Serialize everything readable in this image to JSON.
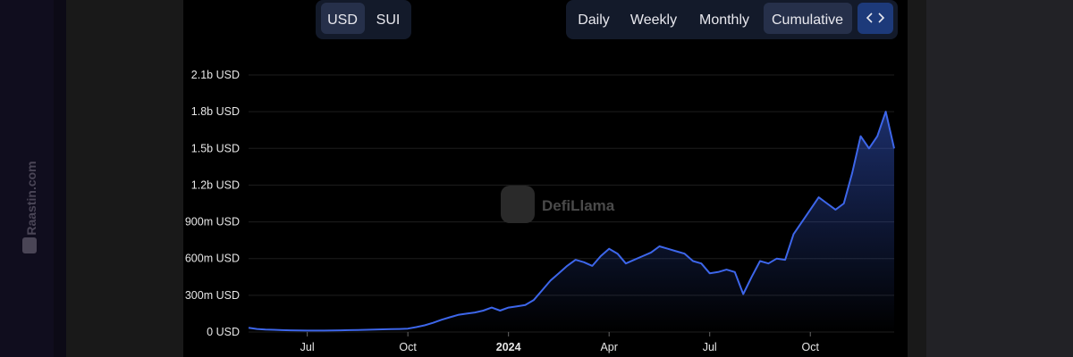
{
  "ui": {
    "currency_buttons": [
      "USD",
      "SUI"
    ],
    "period_buttons": [
      "Daily",
      "Weekly",
      "Monthly",
      "Cumulative"
    ],
    "watermark": "DefiLlama",
    "side_watermark": "Raastin.com"
  },
  "chart_data": {
    "type": "area",
    "color": "#3d66ea",
    "grid": true,
    "categories": [
      null,
      null,
      null,
      null,
      null,
      null,
      null,
      "Jul",
      null,
      null,
      null,
      null,
      null,
      null,
      null,
      null,
      null,
      null,
      null,
      "Oct",
      null,
      null,
      null,
      null,
      null,
      null,
      null,
      null,
      null,
      null,
      null,
      "2024",
      null,
      null,
      null,
      null,
      null,
      null,
      null,
      null,
      null,
      null,
      null,
      "Apr",
      null,
      null,
      null,
      null,
      null,
      null,
      null,
      null,
      null,
      null,
      null,
      "Jul",
      null,
      null,
      null,
      null,
      null,
      null,
      null,
      null,
      null,
      null,
      null,
      "Oct",
      null,
      null,
      null,
      null,
      null,
      null,
      null,
      null,
      null,
      null
    ],
    "values": [
      35000000,
      25000000,
      20000000,
      18000000,
      15000000,
      14000000,
      13000000,
      12000000,
      12000000,
      12000000,
      13000000,
      14000000,
      15000000,
      16000000,
      18000000,
      20000000,
      22000000,
      23000000,
      25000000,
      28000000,
      40000000,
      55000000,
      75000000,
      100000000,
      120000000,
      140000000,
      150000000,
      160000000,
      175000000,
      200000000,
      175000000,
      200000000,
      210000000,
      220000000,
      260000000,
      340000000,
      420000000,
      480000000,
      540000000,
      590000000,
      570000000,
      540000000,
      620000000,
      680000000,
      640000000,
      560000000,
      590000000,
      620000000,
      650000000,
      700000000,
      680000000,
      660000000,
      640000000,
      580000000,
      560000000,
      480000000,
      490000000,
      510000000,
      490000000,
      310000000,
      450000000,
      580000000,
      560000000,
      600000000,
      590000000,
      800000000,
      900000000,
      1000000000,
      1100000000,
      1050000000,
      1000000000,
      1050000000,
      1300000000,
      1600000000,
      1500000000,
      1600000000,
      1800000000,
      1500000000
    ],
    "ylim": [
      0,
      2100000000
    ],
    "yticks": [
      {
        "value": 0,
        "label": "0 USD"
      },
      {
        "value": 300000000,
        "label": "300m USD"
      },
      {
        "value": 600000000,
        "label": "600m USD"
      },
      {
        "value": 900000000,
        "label": "900m USD"
      },
      {
        "value": 1200000000,
        "label": "1.2b USD"
      },
      {
        "value": 1500000000,
        "label": "1.5b USD"
      },
      {
        "value": 1800000000,
        "label": "1.8b USD"
      },
      {
        "value": 2100000000,
        "label": "2.1b USD"
      }
    ]
  }
}
